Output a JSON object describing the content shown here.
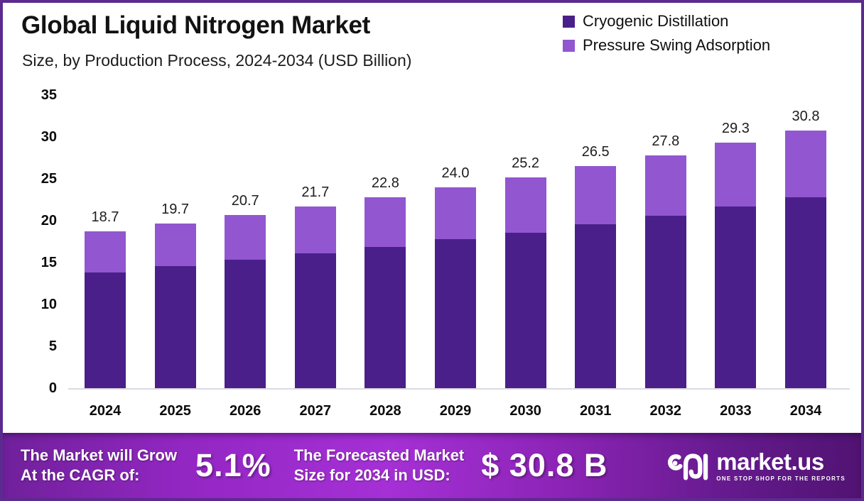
{
  "header": {
    "title": "Global Liquid Nitrogen Market",
    "subtitle": "Size, by Production Process, 2024-2034 (USD Billion)"
  },
  "legend": [
    {
      "label": "Cryogenic Distillation",
      "color": "#4a1f8a"
    },
    {
      "label": "Pressure Swing Adsorption",
      "color": "#9156d0"
    }
  ],
  "colors": {
    "cryogenic": "#4a1f8a",
    "psa": "#9156d0",
    "frame_border": "#5b2b8f",
    "footer_gradient_mid": "#a530d6"
  },
  "chart_data": {
    "type": "bar",
    "stacked": true,
    "title": "Global Liquid Nitrogen Market Size, by Production Process, 2024-2034 (USD Billion)",
    "categories": [
      "2024",
      "2025",
      "2026",
      "2027",
      "2028",
      "2029",
      "2030",
      "2031",
      "2032",
      "2033",
      "2034"
    ],
    "series": [
      {
        "name": "Cryogenic Distillation",
        "color": "#4a1f8a",
        "values": [
          13.8,
          14.6,
          15.3,
          16.1,
          16.9,
          17.8,
          18.6,
          19.6,
          20.6,
          21.7,
          22.8
        ]
      },
      {
        "name": "Pressure Swing Adsorption",
        "color": "#9156d0",
        "values": [
          4.9,
          5.1,
          5.4,
          5.6,
          5.9,
          6.2,
          6.6,
          6.9,
          7.2,
          7.6,
          8.0
        ]
      }
    ],
    "totals": [
      "18.7",
      "19.7",
      "20.7",
      "21.7",
      "22.8",
      "24.0",
      "25.2",
      "26.5",
      "27.8",
      "29.3",
      "30.8"
    ],
    "xlabel": "",
    "ylabel": "",
    "ylim": [
      0,
      35
    ],
    "yticks": [
      0,
      5,
      10,
      15,
      20,
      25,
      30,
      35
    ],
    "grid": false,
    "legend_position": "top-right"
  },
  "footer": {
    "cagr_label_line1": "The Market will Grow",
    "cagr_label_line2": "At the CAGR of:",
    "cagr_value": "5.1%",
    "forecast_label_line1": "The Forecasted Market",
    "forecast_label_line2": "Size for 2034 in USD:",
    "forecast_value": "$ 30.8 B",
    "brand": "market.us",
    "brand_tagline": "ONE STOP SHOP FOR THE REPORTS"
  }
}
